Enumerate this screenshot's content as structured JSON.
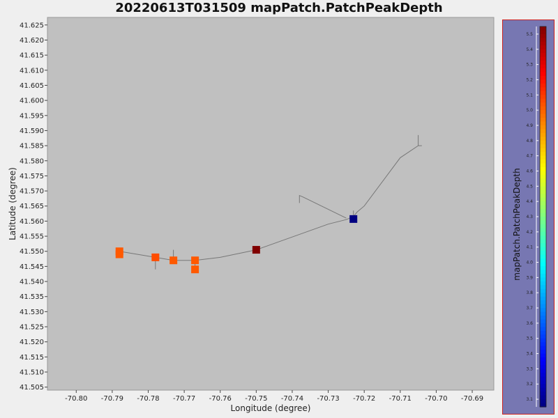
{
  "chart_data": {
    "type": "scatter",
    "title": "20220613T031509 mapPatch.PatchPeakDepth",
    "xlabel": "Longitude (degree)",
    "ylabel": "Latitude (degree)",
    "xlim": [
      -70.808,
      -70.684
    ],
    "ylim": [
      41.504,
      41.6275
    ],
    "x_ticks": [
      -70.8,
      -70.79,
      -70.78,
      -70.77,
      -70.76,
      -70.75,
      -70.74,
      -70.73,
      -70.72,
      -70.71,
      -70.7,
      -70.69
    ],
    "x_tick_labels": [
      "-70.80",
      "-70.79",
      "-70.78",
      "-70.77",
      "-70.76",
      "-70.75",
      "-70.74",
      "-70.73",
      "-70.72",
      "-70.71",
      "-70.70",
      "-70.69"
    ],
    "y_ticks": [
      41.505,
      41.51,
      41.515,
      41.52,
      41.525,
      41.53,
      41.535,
      41.54,
      41.545,
      41.55,
      41.555,
      41.56,
      41.565,
      41.57,
      41.575,
      41.58,
      41.585,
      41.59,
      41.595,
      41.6,
      41.605,
      41.61,
      41.615,
      41.62,
      41.625
    ],
    "y_tick_labels": [
      "41.505",
      "41.510",
      "41.515",
      "41.520",
      "41.525",
      "41.530",
      "41.535",
      "41.540",
      "41.545",
      "41.550",
      "41.555",
      "41.560",
      "41.565",
      "41.570",
      "41.575",
      "41.580",
      "41.585",
      "41.590",
      "41.595",
      "41.600",
      "41.605",
      "41.610",
      "41.615",
      "41.620",
      "41.625"
    ],
    "track": [
      [
        -70.705,
        41.5885
      ],
      [
        -70.705,
        41.585
      ],
      [
        -70.704,
        41.585
      ],
      [
        -70.705,
        41.585
      ],
      [
        -70.71,
        41.581
      ],
      [
        -70.72,
        41.565
      ],
      [
        -70.722,
        41.563
      ],
      [
        -70.723,
        41.5615
      ],
      [
        -70.725,
        41.5605
      ],
      [
        -70.73,
        41.559
      ],
      [
        -70.75,
        41.5505
      ],
      [
        -70.76,
        41.548
      ],
      [
        -70.767,
        41.547
      ],
      [
        -70.773,
        41.547
      ],
      [
        -70.778,
        41.548
      ],
      [
        -70.788,
        41.55
      ]
    ],
    "spurs": [
      [
        [
          -70.738,
          41.566
        ],
        [
          -70.738,
          41.5685
        ],
        [
          -70.737,
          41.568
        ],
        [
          -70.725,
          41.561
        ]
      ],
      [
        [
          -70.723,
          41.5635
        ],
        [
          -70.723,
          41.56
        ],
        [
          -70.724,
          41.56
        ]
      ],
      [
        [
          -70.778,
          41.548
        ],
        [
          -70.778,
          41.544
        ]
      ],
      [
        [
          -70.773,
          41.5505
        ],
        [
          -70.773,
          41.547
        ]
      ],
      [
        [
          -70.767,
          41.547
        ],
        [
          -70.767,
          41.544
        ]
      ]
    ],
    "points": [
      {
        "x": -70.788,
        "y": 41.55,
        "value": 5.02
      },
      {
        "x": -70.788,
        "y": 41.549,
        "value": 5.02
      },
      {
        "x": -70.778,
        "y": 41.548,
        "value": 5.05
      },
      {
        "x": -70.773,
        "y": 41.547,
        "value": 5.02
      },
      {
        "x": -70.767,
        "y": 41.547,
        "value": 5.02
      },
      {
        "x": -70.767,
        "y": 41.544,
        "value": 5.02
      },
      {
        "x": -70.75,
        "y": 41.5505,
        "value": 5.55
      },
      {
        "x": -70.723,
        "y": 41.5607,
        "value": 3.05
      }
    ],
    "colorbar": {
      "label": "mapPatch.PatchPeakDepth",
      "min": 3.05,
      "max": 5.55,
      "ticks": [
        "3.1",
        "3.2",
        "3.3",
        "3.4",
        "3.5",
        "3.6",
        "3.7",
        "3.8",
        "3.9",
        "4.0",
        "4.1",
        "4.2",
        "4.3",
        "4.4",
        "4.5",
        "4.6",
        "4.7",
        "4.8",
        "4.9",
        "5.0",
        "5.1",
        "5.2",
        "5.3",
        "5.4",
        "5.5"
      ],
      "colormap": "jet"
    },
    "colors": {
      "plot_background": "#c0c0c0",
      "page_background": "#efefef",
      "colorbar_panel": "#7777b2",
      "colorbar_border": "#cc2222",
      "track_line": "#777777"
    },
    "grid": false,
    "legend": "colorbar-right"
  }
}
